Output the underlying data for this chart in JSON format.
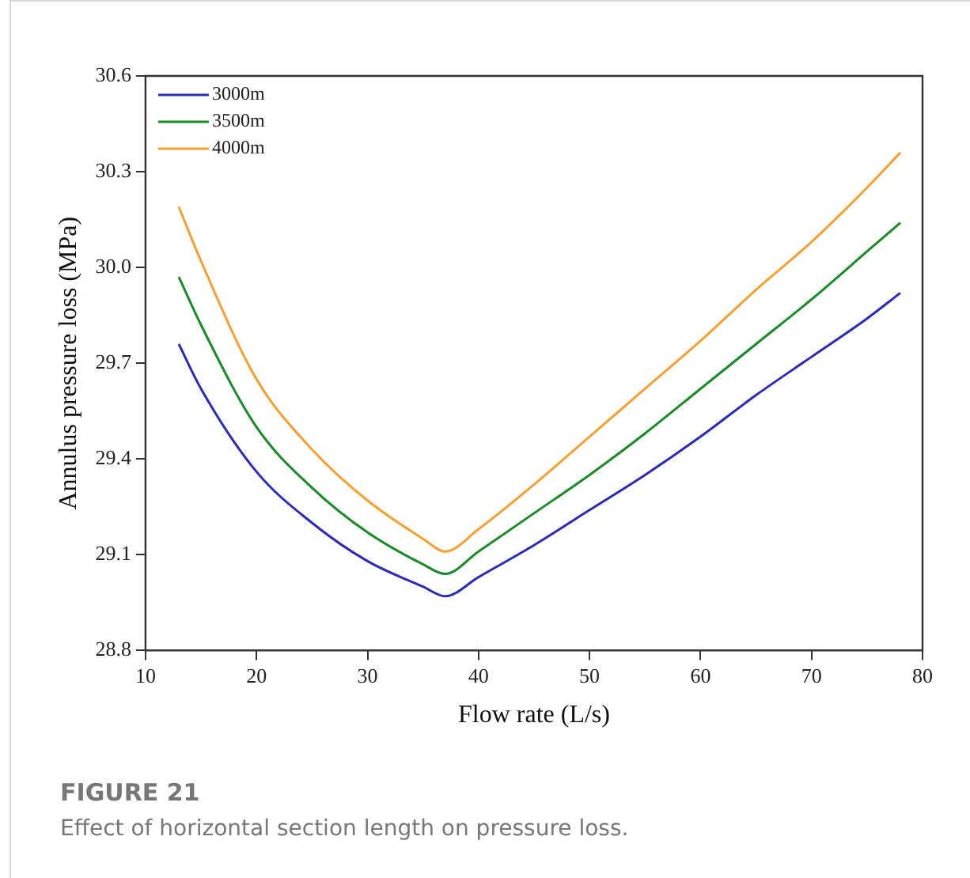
{
  "chart_data": {
    "type": "line",
    "xlabel": "Flow rate (L/s)",
    "ylabel": "Annulus pressure loss (MPa)",
    "x": [
      13,
      15,
      20,
      25,
      30,
      35,
      37,
      40,
      45,
      50,
      55,
      60,
      65,
      70,
      75,
      78
    ],
    "series": [
      {
        "name": "3000m",
        "color": "#2b2bb8",
        "values": [
          29.76,
          29.62,
          29.36,
          29.2,
          29.08,
          29.0,
          28.97,
          29.03,
          29.13,
          29.24,
          29.35,
          29.47,
          29.6,
          29.72,
          29.84,
          29.92
        ]
      },
      {
        "name": "3500m",
        "color": "#1a8a2a",
        "values": [
          29.97,
          29.82,
          29.5,
          29.31,
          29.17,
          29.07,
          29.04,
          29.11,
          29.23,
          29.35,
          29.48,
          29.62,
          29.76,
          29.9,
          30.05,
          30.14
        ]
      },
      {
        "name": "4000m",
        "color": "#f5a033",
        "values": [
          30.19,
          30.02,
          29.65,
          29.43,
          29.27,
          29.15,
          29.11,
          29.18,
          29.32,
          29.47,
          29.62,
          29.77,
          29.93,
          30.08,
          30.25,
          30.36
        ]
      }
    ],
    "xlim": [
      10,
      80
    ],
    "xticks": [
      10,
      20,
      30,
      40,
      50,
      60,
      70,
      80
    ],
    "ylim": [
      28.8,
      30.6
    ],
    "yticks": [
      28.8,
      29.1,
      29.4,
      29.7,
      {
        "value": 30,
        "label": "30.0"
      },
      30.3,
      30.6
    ],
    "grid": false,
    "legend": "top left",
    "marker": "none",
    "line_style": "solid",
    "annotations": [
      "FIGURE 21",
      "Effect of horizontal section length on pressure loss."
    ]
  }
}
